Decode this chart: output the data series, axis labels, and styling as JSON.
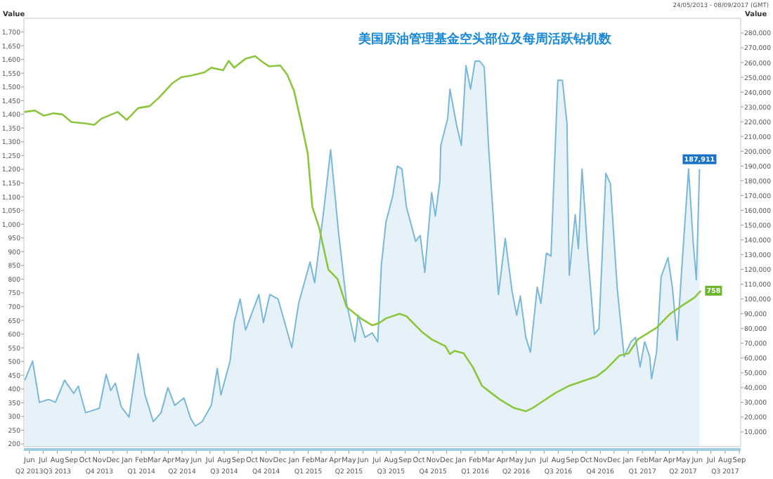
{
  "chart_data": {
    "type": "line",
    "title": "美国原油管理基金空头部位及每周活跃钻机数",
    "ylabel": "Value",
    "y2label": "Value",
    "annotations": [
      "24/05/2013 - 08/09/2017 (GMT)"
    ],
    "xlim": [
      "2013-06-03",
      "2017-09-18"
    ],
    "xticks": [
      {
        "value": "2013-06-15",
        "label": "Jun"
      },
      {
        "value": "2013-07-15",
        "label": "Jul"
      },
      {
        "value": "2013-08-15",
        "label": "Aug"
      },
      {
        "value": "2013-09-15",
        "label": "Sep"
      },
      {
        "value": "2013-10-15",
        "label": "Oct"
      },
      {
        "value": "2013-11-15",
        "label": "Nov"
      },
      {
        "value": "2013-12-15",
        "label": "Dec"
      },
      {
        "value": "2014-01-15",
        "label": "Jan"
      },
      {
        "value": "2014-02-15",
        "label": "Feb"
      },
      {
        "value": "2014-03-15",
        "label": "Mar"
      },
      {
        "value": "2014-04-15",
        "label": "Apr"
      },
      {
        "value": "2014-05-15",
        "label": "May"
      },
      {
        "value": "2014-06-15",
        "label": "Jun"
      },
      {
        "value": "2014-07-15",
        "label": "Jul"
      },
      {
        "value": "2014-08-15",
        "label": "Aug"
      },
      {
        "value": "2014-09-15",
        "label": "Sep"
      },
      {
        "value": "2014-10-15",
        "label": "Oct"
      },
      {
        "value": "2014-11-15",
        "label": "Nov"
      },
      {
        "value": "2014-12-15",
        "label": "Dec"
      },
      {
        "value": "2015-01-15",
        "label": "Jan"
      },
      {
        "value": "2015-02-15",
        "label": "Feb"
      },
      {
        "value": "2015-03-15",
        "label": "Mar"
      },
      {
        "value": "2015-04-15",
        "label": "Apr"
      },
      {
        "value": "2015-05-15",
        "label": "May"
      },
      {
        "value": "2015-06-15",
        "label": "Jun"
      },
      {
        "value": "2015-07-15",
        "label": "Jul"
      },
      {
        "value": "2015-08-15",
        "label": "Aug"
      },
      {
        "value": "2015-09-15",
        "label": "Sep"
      },
      {
        "value": "2015-10-15",
        "label": "Oct"
      },
      {
        "value": "2015-11-15",
        "label": "Nov"
      },
      {
        "value": "2015-12-15",
        "label": "Dec"
      },
      {
        "value": "2016-01-15",
        "label": "Jan"
      },
      {
        "value": "2016-02-15",
        "label": "Feb"
      },
      {
        "value": "2016-03-15",
        "label": "Mar"
      },
      {
        "value": "2016-04-15",
        "label": "Apr"
      },
      {
        "value": "2016-05-15",
        "label": "May"
      },
      {
        "value": "2016-06-15",
        "label": "Jun"
      },
      {
        "value": "2016-07-15",
        "label": "Jul"
      },
      {
        "value": "2016-08-15",
        "label": "Aug"
      },
      {
        "value": "2016-09-15",
        "label": "Sep"
      },
      {
        "value": "2016-10-15",
        "label": "Oct"
      },
      {
        "value": "2016-11-15",
        "label": "Nov"
      },
      {
        "value": "2016-12-15",
        "label": "Dec"
      },
      {
        "value": "2017-01-15",
        "label": "Jan"
      },
      {
        "value": "2017-02-15",
        "label": "Feb"
      },
      {
        "value": "2017-03-15",
        "label": "Mar"
      },
      {
        "value": "2017-04-15",
        "label": "Apr"
      },
      {
        "value": "2017-05-15",
        "label": "May"
      },
      {
        "value": "2017-06-15",
        "label": "Jun"
      },
      {
        "value": "2017-07-15",
        "label": "Jul"
      },
      {
        "value": "2017-08-15",
        "label": "Aug"
      },
      {
        "value": "2017-09-15",
        "label": "Sep"
      }
    ],
    "x2lim": [
      "2013-06-03",
      "2017-09-18"
    ],
    "x2ticks": [
      {
        "value": "2013-06-15",
        "label": "Q2 2013"
      },
      {
        "value": "2013-08-15",
        "label": "Q3 2013"
      },
      {
        "value": "2013-11-15",
        "label": "Q4 2013"
      },
      {
        "value": "2014-02-15",
        "label": "Q1 2014"
      },
      {
        "value": "2014-05-15",
        "label": "Q2 2014"
      },
      {
        "value": "2014-08-15",
        "label": "Q3 2014"
      },
      {
        "value": "2014-11-15",
        "label": "Q4 2014"
      },
      {
        "value": "2015-02-15",
        "label": "Q1 2015"
      },
      {
        "value": "2015-05-15",
        "label": "Q2 2015"
      },
      {
        "value": "2015-08-15",
        "label": "Q3 2015"
      },
      {
        "value": "2015-11-15",
        "label": "Q4 2015"
      },
      {
        "value": "2016-02-15",
        "label": "Q1 2016"
      },
      {
        "value": "2016-05-15",
        "label": "Q2 2016"
      },
      {
        "value": "2016-08-15",
        "label": "Q3 2016"
      },
      {
        "value": "2016-11-15",
        "label": "Q4 2016"
      },
      {
        "value": "2017-02-15",
        "label": "Q1 2017"
      },
      {
        "value": "2017-05-15",
        "label": "Q2 2017"
      },
      {
        "value": "2017-08-15",
        "label": "Q3 2017"
      }
    ],
    "ylim": [
      190,
      1750
    ],
    "yticks": [
      200,
      250,
      300,
      350,
      400,
      450,
      500,
      550,
      600,
      650,
      700,
      750,
      800,
      850,
      900,
      950,
      {
        "value": 1000,
        "label": "1,000"
      },
      {
        "value": 1050,
        "label": "1,050"
      },
      {
        "value": 1100,
        "label": "1,100"
      },
      {
        "value": 1150,
        "label": "1,150"
      },
      {
        "value": 1200,
        "label": "1,200"
      },
      {
        "value": 1250,
        "label": "1,250"
      },
      {
        "value": 1300,
        "label": "1,300"
      },
      {
        "value": 1350,
        "label": "1,350"
      },
      {
        "value": 1400,
        "label": "1,400"
      },
      {
        "value": 1450,
        "label": "1,450"
      },
      {
        "value": 1500,
        "label": "1,500"
      },
      {
        "value": 1550,
        "label": "1,550"
      },
      {
        "value": 1600,
        "label": "1,600"
      },
      {
        "value": 1650,
        "label": "1,650"
      },
      {
        "value": 1700,
        "label": "1,700"
      }
    ],
    "y2lim": [
      0,
      290000
    ],
    "y2ticks": [
      {
        "value": 10000,
        "label": "10,000"
      },
      {
        "value": 20000,
        "label": "20,000"
      },
      {
        "value": 30000,
        "label": "30,000"
      },
      {
        "value": 40000,
        "label": "40,000"
      },
      {
        "value": 50000,
        "label": "50,000"
      },
      {
        "value": 60000,
        "label": "60,000"
      },
      {
        "value": 70000,
        "label": "70,000"
      },
      {
        "value": 80000,
        "label": "80,000"
      },
      {
        "value": 90000,
        "label": "90,000"
      },
      {
        "value": 100000,
        "label": "100,000"
      },
      {
        "value": 110000,
        "label": "110,000"
      },
      {
        "value": 120000,
        "label": "120,000"
      },
      {
        "value": 130000,
        "label": "130,000"
      },
      {
        "value": 140000,
        "label": "140,000"
      },
      {
        "value": 150000,
        "label": "150,000"
      },
      {
        "value": 160000,
        "label": "160,000"
      },
      {
        "value": 170000,
        "label": "170,000"
      },
      {
        "value": 180000,
        "label": "180,000"
      },
      {
        "value": 190000,
        "label": "190,000"
      },
      {
        "value": 200000,
        "label": "200,000"
      },
      {
        "value": 210000,
        "label": "210,000"
      },
      {
        "value": 220000,
        "label": "220,000"
      },
      {
        "value": 230000,
        "label": "230,000"
      },
      {
        "value": 240000,
        "label": "240,000"
      },
      {
        "value": 250000,
        "label": "250,000"
      },
      {
        "value": 260000,
        "label": "260,000"
      },
      {
        "value": 270000,
        "label": "270,000"
      },
      {
        "value": 280000,
        "label": "280,000"
      }
    ],
    "series": [
      {
        "type": "area",
        "axis": "y2",
        "color": "#7ab8d9",
        "x": [
          "2013-06-05",
          "2013-06-22",
          "2013-07-07",
          "2013-07-27",
          "2013-08-11",
          "2013-08-31",
          "2013-09-20",
          "2013-09-30",
          "2013-10-16",
          "2013-11-15",
          "2013-11-30",
          "2013-12-10",
          "2013-12-20",
          "2014-01-02",
          "2014-01-19",
          "2014-02-08",
          "2014-02-23",
          "2014-03-13",
          "2014-03-30",
          "2014-04-14",
          "2014-04-29",
          "2014-05-19",
          "2014-06-03",
          "2014-06-13",
          "2014-06-28",
          "2014-07-18",
          "2014-07-31",
          "2014-08-08",
          "2014-08-28",
          "2014-09-06",
          "2014-09-19",
          "2014-10-01",
          "2014-10-30",
          "2014-11-09",
          "2014-11-23",
          "2014-12-11",
          "2015-01-10",
          "2015-01-25",
          "2015-02-19",
          "2015-03-01",
          "2015-03-21",
          "2015-04-05",
          "2015-04-22",
          "2015-05-10",
          "2015-05-28",
          "2015-06-04",
          "2015-06-19",
          "2015-07-05",
          "2015-07-17",
          "2015-07-25",
          "2015-08-04",
          "2015-08-19",
          "2015-08-29",
          "2015-09-08",
          "2015-09-18",
          "2015-10-08",
          "2015-10-18",
          "2015-10-28",
          "2015-11-12",
          "2015-11-20",
          "2015-11-30",
          "2015-12-02",
          "2015-12-17",
          "2015-12-22",
          "2016-01-06",
          "2016-01-16",
          "2016-01-26",
          "2016-02-05",
          "2016-02-15",
          "2016-02-25",
          "2016-03-06",
          "2016-03-16",
          "2016-04-06",
          "2016-04-21",
          "2016-05-06",
          "2016-05-16",
          "2016-05-24",
          "2016-06-05",
          "2016-06-15",
          "2016-06-30",
          "2016-07-08",
          "2016-07-20",
          "2016-07-30",
          "2016-08-14",
          "2016-08-24",
          "2016-09-03",
          "2016-09-08",
          "2016-09-21",
          "2016-09-28",
          "2016-10-06",
          "2016-10-18",
          "2016-11-02",
          "2016-11-12",
          "2016-11-27",
          "2016-12-07",
          "2016-12-22",
          "2017-01-06",
          "2017-01-21",
          "2017-01-31",
          "2017-02-10",
          "2017-02-20",
          "2017-03-03",
          "2017-03-07",
          "2017-03-18",
          "2017-03-28",
          "2017-04-12",
          "2017-04-22",
          "2017-05-02",
          "2017-05-12",
          "2017-05-27",
          "2017-06-06",
          "2017-06-13",
          "2017-06-20"
        ],
        "values": [
          45000,
          58000,
          30000,
          32000,
          30000,
          45000,
          36000,
          41000,
          23000,
          26000,
          49000,
          38000,
          43000,
          27000,
          20000,
          63000,
          35000,
          17000,
          23000,
          40000,
          28000,
          33000,
          19000,
          14000,
          17000,
          28000,
          53000,
          35000,
          58000,
          84000,
          100000,
          79000,
          103000,
          84000,
          103000,
          100000,
          67000,
          97000,
          125000,
          111000,
          160000,
          201000,
          146000,
          97000,
          71000,
          89000,
          74000,
          77000,
          71000,
          123000,
          152000,
          170000,
          190000,
          188000,
          162000,
          139000,
          143000,
          118000,
          172000,
          156000,
          180000,
          204000,
          222000,
          242000,
          217000,
          204000,
          258000,
          242000,
          261000,
          261000,
          257000,
          201000,
          103000,
          141000,
          105000,
          89000,
          102000,
          74000,
          64000,
          108000,
          97000,
          131000,
          129000,
          248000,
          248000,
          219000,
          116000,
          157000,
          134000,
          188000,
          133000,
          76000,
          80000,
          185000,
          178000,
          107000,
          61000,
          71000,
          74000,
          54000,
          71000,
          61000,
          46000,
          64000,
          115000,
          128000,
          107000,
          72000,
          120000,
          188000,
          139000,
          113000,
          187911
        ],
        "value_labels": [
          null,
          null,
          null,
          null,
          null,
          null,
          null,
          null,
          null,
          null,
          null,
          null,
          null,
          null,
          null,
          null,
          null,
          null,
          null,
          null,
          null,
          null,
          null,
          null,
          null,
          null,
          null,
          null,
          null,
          null,
          null,
          null,
          null,
          null,
          null,
          null,
          null,
          null,
          null,
          null,
          null,
          null,
          null,
          null,
          null,
          null,
          null,
          null,
          null,
          null,
          null,
          null,
          null,
          null,
          null,
          null,
          null,
          null,
          null,
          null,
          null,
          null,
          null,
          null,
          null,
          null,
          null,
          null,
          null,
          null,
          null,
          null,
          null,
          null,
          null,
          null,
          null,
          null,
          null,
          null,
          null,
          null,
          null,
          null,
          null,
          null,
          null,
          null,
          null,
          null,
          null,
          null,
          null,
          null,
          null,
          null,
          null,
          null,
          null,
          null,
          null,
          null,
          null,
          null,
          null,
          null,
          null,
          null,
          null,
          null,
          null,
          null,
          "187,911"
        ]
      },
      {
        "color": "#8cc63e",
        "x": [
          "2013-06-04",
          "2013-06-27",
          "2013-07-17",
          "2013-08-06",
          "2013-08-26",
          "2013-09-15",
          "2013-10-16",
          "2013-11-04",
          "2013-11-19",
          "2013-12-25",
          "2014-01-14",
          "2014-02-08",
          "2014-03-05",
          "2014-03-25",
          "2014-04-24",
          "2014-05-14",
          "2014-06-03",
          "2014-07-03",
          "2014-07-18",
          "2014-08-13",
          "2014-08-25",
          "2014-09-06",
          "2014-10-01",
          "2014-10-22",
          "2014-11-06",
          "2014-11-21",
          "2014-12-16",
          "2014-12-31",
          "2015-01-15",
          "2015-01-30",
          "2015-02-14",
          "2015-02-24",
          "2015-03-11",
          "2015-03-31",
          "2015-04-20",
          "2015-05-10",
          "2015-06-10",
          "2015-07-05",
          "2015-07-20",
          "2015-08-04",
          "2015-09-03",
          "2015-09-18",
          "2015-10-23",
          "2015-11-12",
          "2015-12-12",
          "2015-12-22",
          "2016-01-01",
          "2016-01-21",
          "2016-02-10",
          "2016-03-01",
          "2016-03-21",
          "2016-04-10",
          "2016-05-10",
          "2016-06-05",
          "2016-06-20",
          "2016-07-10",
          "2016-08-09",
          "2016-09-08",
          "2016-10-08",
          "2016-11-07",
          "2016-11-27",
          "2016-12-27",
          "2017-01-16",
          "2017-02-05",
          "2017-03-18",
          "2017-04-17",
          "2017-05-17",
          "2017-06-09",
          "2017-06-23"
        ],
        "values": [
          1409,
          1414,
          1395,
          1404,
          1400,
          1372,
          1367,
          1362,
          1384,
          1409,
          1380,
          1423,
          1430,
          1460,
          1514,
          1536,
          1541,
          1553,
          1570,
          1561,
          1595,
          1570,
          1603,
          1612,
          1592,
          1575,
          1578,
          1545,
          1485,
          1375,
          1257,
          1063,
          987,
          835,
          801,
          699,
          657,
          632,
          640,
          657,
          674,
          665,
          606,
          581,
          556,
          527,
          539,
          530,
          480,
          412,
          386,
          361,
          331,
          319,
          331,
          353,
          386,
          412,
          429,
          446,
          471,
          522,
          530,
          581,
          623,
          674,
          708,
          733,
          758
        ],
        "value_labels": [
          null,
          null,
          null,
          null,
          null,
          null,
          null,
          null,
          null,
          null,
          null,
          null,
          null,
          null,
          null,
          null,
          null,
          null,
          null,
          null,
          null,
          null,
          null,
          null,
          null,
          null,
          null,
          null,
          null,
          null,
          null,
          null,
          null,
          null,
          null,
          null,
          null,
          null,
          null,
          null,
          null,
          null,
          null,
          null,
          null,
          null,
          null,
          null,
          null,
          null,
          null,
          null,
          null,
          null,
          null,
          null,
          null,
          null,
          null,
          null,
          null,
          null,
          null,
          null,
          null,
          null,
          null,
          null,
          "758"
        ]
      }
    ]
  }
}
